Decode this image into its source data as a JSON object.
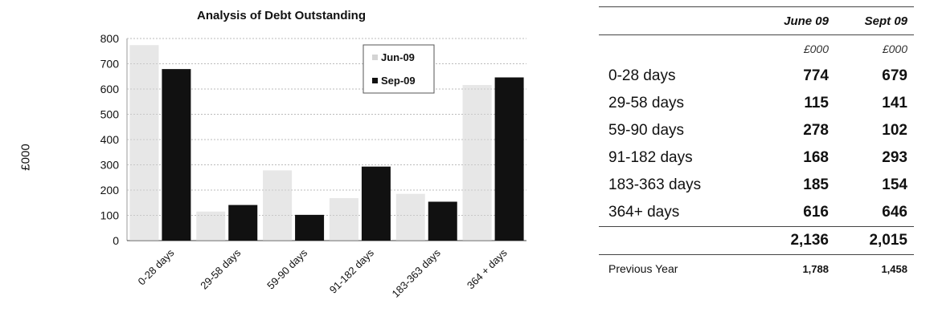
{
  "chart_data": {
    "type": "bar",
    "title": "Analysis of Debt Outstanding",
    "ylabel": "£000",
    "xlabel": "",
    "categories": [
      "0-28 days",
      "29-58 days",
      "59-90 days",
      "91-182 days",
      "183-363 days",
      "364 + days"
    ],
    "series": [
      {
        "name": "Jun-09",
        "values": [
          774,
          115,
          278,
          168,
          185,
          616
        ],
        "color": "#d4d4d4"
      },
      {
        "name": "Sep-09",
        "values": [
          679,
          141,
          102,
          293,
          154,
          646
        ],
        "color": "#111111"
      }
    ],
    "ylim": [
      0,
      800
    ],
    "yticks": [
      "0",
      "100",
      "200",
      "300",
      "400",
      "500",
      "600",
      "700",
      "800"
    ],
    "grid": true,
    "legend": "top-right"
  },
  "table": {
    "headers": [
      "",
      "June 09",
      "Sept 09"
    ],
    "units": [
      "",
      "£000",
      "£000"
    ],
    "rows": [
      {
        "label": "0-28 days",
        "june": "774",
        "sept": "679"
      },
      {
        "label": "29-58 days",
        "june": "115",
        "sept": "141"
      },
      {
        "label": "59-90 days",
        "june": "278",
        "sept": "102"
      },
      {
        "label": "91-182 days",
        "june": "168",
        "sept": "293"
      },
      {
        "label": "183-363 days",
        "june": "185",
        "sept": "154"
      },
      {
        "label": "364+ days",
        "june": "616",
        "sept": "646"
      }
    ],
    "total": {
      "june": "2,136",
      "sept": "2,015"
    },
    "previous_year": {
      "label": "Previous Year",
      "june": "1,788",
      "sept": "1,458"
    }
  }
}
